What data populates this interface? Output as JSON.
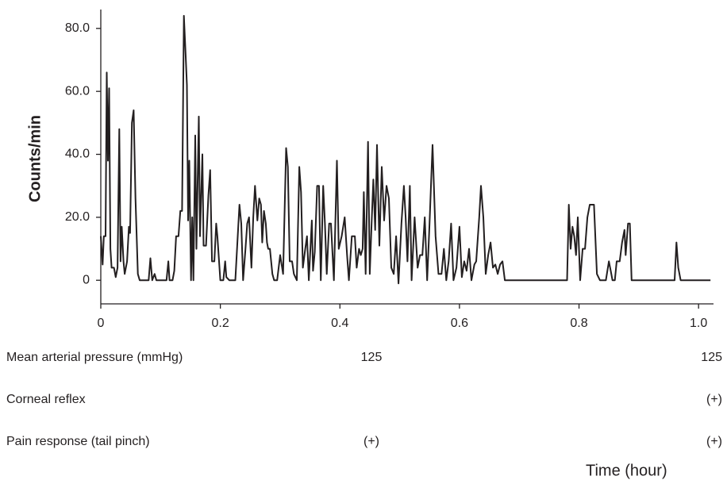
{
  "chart_data": {
    "type": "line",
    "ylabel": "Counts/min",
    "xlabel": "Time (hour)",
    "color": "#231f20",
    "xlim": [
      0,
      1.025
    ],
    "ylim": [
      -7.5,
      86
    ],
    "xticks": [
      0,
      0.2,
      0.4,
      0.6,
      0.8,
      {
        "value": 1,
        "label": "1.0"
      }
    ],
    "yticks": [
      0,
      {
        "value": 20,
        "label": "20.0"
      },
      {
        "value": 40,
        "label": "40.0"
      },
      {
        "value": 60,
        "label": "60.0"
      },
      {
        "value": 80,
        "label": "80.0"
      }
    ],
    "x": [
      0,
      0.003,
      0.005,
      0.008,
      0.01,
      0.012,
      0.014,
      0.016,
      0.018,
      0.022,
      0.025,
      0.028,
      0.031,
      0.033,
      0.035,
      0.038,
      0.04,
      0.044,
      0.047,
      0.049,
      0.052,
      0.055,
      0.058,
      0.062,
      0.065,
      0.08,
      0.083,
      0.086,
      0.09,
      0.093,
      0.11,
      0.113,
      0.115,
      0.12,
      0.123,
      0.126,
      0.13,
      0.133,
      0.136,
      0.139,
      0.142,
      0.144,
      0.146,
      0.148,
      0.151,
      0.153,
      0.155,
      0.158,
      0.16,
      0.164,
      0.166,
      0.17,
      0.172,
      0.176,
      0.18,
      0.183,
      0.186,
      0.19,
      0.193,
      0.195,
      0.2,
      0.205,
      0.208,
      0.21,
      0.215,
      0.225,
      0.232,
      0.235,
      0.238,
      0.242,
      0.245,
      0.248,
      0.252,
      0.255,
      0.258,
      0.262,
      0.265,
      0.268,
      0.27,
      0.273,
      0.276,
      0.278,
      0.28,
      0.283,
      0.287,
      0.29,
      0.295,
      0.3,
      0.305,
      0.31,
      0.313,
      0.316,
      0.32,
      0.323,
      0.328,
      0.332,
      0.335,
      0.338,
      0.342,
      0.345,
      0.348,
      0.353,
      0.355,
      0.358,
      0.362,
      0.365,
      0.368,
      0.372,
      0.375,
      0.378,
      0.382,
      0.385,
      0.39,
      0.395,
      0.398,
      0.403,
      0.408,
      0.412,
      0.415,
      0.42,
      0.425,
      0.428,
      0.432,
      0.435,
      0.438,
      0.44,
      0.443,
      0.447,
      0.45,
      0.453,
      0.456,
      0.459,
      0.462,
      0.466,
      0.47,
      0.474,
      0.478,
      0.482,
      0.486,
      0.49,
      0.494,
      0.498,
      0.503,
      0.507,
      0.51,
      0.513,
      0.517,
      0.52,
      0.525,
      0.53,
      0.534,
      0.538,
      0.542,
      0.546,
      0.55,
      0.555,
      0.56,
      0.565,
      0.57,
      0.574,
      0.578,
      0.582,
      0.586,
      0.59,
      0.595,
      0.6,
      0.604,
      0.608,
      0.612,
      0.616,
      0.62,
      0.625,
      0.628,
      0.633,
      0.636,
      0.64,
      0.644,
      0.648,
      0.652,
      0.656,
      0.66,
      0.664,
      0.668,
      0.672,
      0.676,
      0.78,
      0.783,
      0.786,
      0.789,
      0.792,
      0.795,
      0.798,
      0.802,
      0.806,
      0.81,
      0.814,
      0.818,
      0.825,
      0.83,
      0.835,
      0.845,
      0.85,
      0.853,
      0.856,
      0.86,
      0.863,
      0.868,
      0.872,
      0.876,
      0.878,
      0.882,
      0.885,
      0.888,
      0.96,
      0.963,
      0.966,
      0.97,
      1.02
    ],
    "values": [
      14,
      5,
      14,
      14,
      66,
      38,
      61,
      10,
      4,
      4,
      1,
      4,
      48,
      6,
      17,
      6,
      2,
      6,
      17,
      15,
      50,
      54,
      26,
      2,
      0,
      0,
      7,
      0,
      2,
      0,
      0,
      6,
      0,
      0,
      3,
      14,
      14,
      22,
      22,
      84,
      71,
      62,
      19,
      38,
      0,
      20,
      0,
      46,
      10,
      52,
      14,
      40,
      11,
      11,
      27,
      35,
      6,
      6,
      18,
      14,
      0,
      0,
      6,
      1,
      0,
      0,
      24,
      18,
      0,
      10,
      18,
      20,
      4,
      20,
      30,
      19,
      26,
      24,
      12,
      22,
      18,
      12,
      10,
      10,
      2,
      0,
      0,
      8,
      2,
      42,
      36,
      6,
      6,
      2,
      0,
      36,
      28,
      4,
      10,
      14,
      0,
      19,
      3,
      9,
      30,
      30,
      0,
      30,
      18,
      2,
      18,
      18,
      0,
      38,
      10,
      14,
      20,
      8,
      0,
      14,
      14,
      4,
      10,
      8,
      10,
      28,
      2,
      44,
      2,
      18,
      32,
      16,
      43,
      11,
      36,
      19,
      30,
      26,
      4,
      2,
      14,
      -1,
      18,
      30,
      20,
      6,
      30,
      0,
      20,
      4,
      8,
      8,
      20,
      0,
      18,
      43,
      14,
      2,
      2,
      10,
      0,
      6,
      18,
      0,
      4,
      17,
      1,
      6,
      3,
      10,
      0,
      5,
      6,
      20,
      30,
      20,
      2,
      8,
      12,
      4,
      5,
      2,
      5,
      6,
      0,
      0,
      24,
      10,
      17,
      14,
      8,
      20,
      0,
      10,
      10,
      20,
      24,
      24,
      2,
      0,
      0,
      6,
      3,
      0,
      0,
      6,
      6,
      12,
      16,
      8,
      18,
      18,
      0,
      0,
      12,
      4,
      0,
      0
    ],
    "rows": [
      {
        "label": "Mean arterial pressure (mmHg)",
        "entries": [
          "125",
          "125"
        ]
      },
      {
        "label": "Corneal reflex",
        "entries": [
          "(+)"
        ]
      },
      {
        "label": "Pain response (tail pinch)",
        "entries": [
          "(+)",
          "(+)"
        ]
      }
    ]
  }
}
